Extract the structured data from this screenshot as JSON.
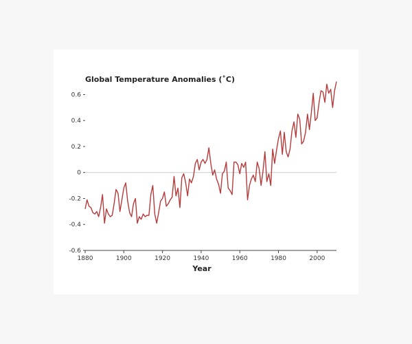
{
  "chart_data": {
    "type": "line",
    "title": "Global Temperature Anomalies (˚C)",
    "xlabel": "Year",
    "ylabel": "",
    "xlim": [
      1880,
      2010
    ],
    "ylim": [
      -0.6,
      0.65
    ],
    "xticks": [
      1880,
      1900,
      1920,
      1940,
      1960,
      1980,
      2000
    ],
    "yticks": [
      -0.6,
      -0.4,
      -0.2,
      0,
      0.2,
      0.4,
      0.6
    ],
    "ytick_labels": [
      "-0.6",
      "-0.4",
      "-0.2",
      "0",
      "0.2",
      "0.4",
      "0.6"
    ],
    "zero_line": true,
    "grid": false,
    "series": [
      {
        "color": "#b63a3a",
        "x": [
          1880,
          1881,
          1882,
          1883,
          1884,
          1885,
          1886,
          1887,
          1888,
          1889,
          1890,
          1891,
          1892,
          1893,
          1894,
          1895,
          1896,
          1897,
          1898,
          1899,
          1900,
          1901,
          1902,
          1903,
          1904,
          1905,
          1906,
          1907,
          1908,
          1909,
          1910,
          1911,
          1912,
          1913,
          1914,
          1915,
          1916,
          1917,
          1918,
          1919,
          1920,
          1921,
          1922,
          1923,
          1924,
          1925,
          1926,
          1927,
          1928,
          1929,
          1930,
          1931,
          1932,
          1933,
          1934,
          1935,
          1936,
          1937,
          1938,
          1939,
          1940,
          1941,
          1942,
          1943,
          1944,
          1945,
          1946,
          1947,
          1948,
          1949,
          1950,
          1951,
          1952,
          1953,
          1954,
          1955,
          1956,
          1957,
          1958,
          1959,
          1960,
          1961,
          1962,
          1963,
          1964,
          1965,
          1966,
          1967,
          1968,
          1969,
          1970,
          1971,
          1972,
          1973,
          1974,
          1975,
          1976,
          1977,
          1978,
          1979,
          1980,
          1981,
          1982,
          1983,
          1984,
          1985,
          1986,
          1987,
          1988,
          1989,
          1990,
          1991,
          1992,
          1993,
          1994,
          1995,
          1996,
          1997,
          1998,
          1999,
          2000,
          2001,
          2002,
          2003,
          2004,
          2005,
          2006,
          2007,
          2008,
          2009,
          2010
        ],
        "y": [
          -0.28,
          -0.21,
          -0.26,
          -0.27,
          -0.31,
          -0.32,
          -0.3,
          -0.34,
          -0.27,
          -0.17,
          -0.39,
          -0.28,
          -0.32,
          -0.34,
          -0.33,
          -0.24,
          -0.13,
          -0.16,
          -0.3,
          -0.21,
          -0.12,
          -0.08,
          -0.22,
          -0.31,
          -0.34,
          -0.24,
          -0.2,
          -0.39,
          -0.34,
          -0.36,
          -0.32,
          -0.34,
          -0.33,
          -0.33,
          -0.17,
          -0.1,
          -0.32,
          -0.39,
          -0.31,
          -0.22,
          -0.2,
          -0.15,
          -0.26,
          -0.24,
          -0.21,
          -0.19,
          -0.03,
          -0.18,
          -0.12,
          -0.27,
          -0.04,
          -0.01,
          -0.08,
          -0.18,
          -0.05,
          -0.08,
          -0.03,
          0.07,
          0.1,
          0.02,
          0.08,
          0.1,
          0.07,
          0.1,
          0.19,
          0.07,
          -0.02,
          0.02,
          -0.05,
          -0.09,
          -0.16,
          -0.01,
          0.01,
          0.08,
          -0.12,
          -0.14,
          -0.17,
          0.08,
          0.08,
          0.06,
          -0.01,
          0.07,
          0.04,
          0.08,
          -0.21,
          -0.1,
          -0.05,
          -0.02,
          -0.07,
          0.08,
          0.03,
          -0.1,
          0.01,
          0.16,
          -0.07,
          -0.01,
          -0.1,
          0.18,
          0.07,
          0.17,
          0.26,
          0.32,
          0.14,
          0.31,
          0.16,
          0.12,
          0.18,
          0.32,
          0.39,
          0.27,
          0.45,
          0.41,
          0.22,
          0.24,
          0.31,
          0.45,
          0.33,
          0.46,
          0.61,
          0.4,
          0.42,
          0.54,
          0.63,
          0.62,
          0.54,
          0.68,
          0.61,
          0.64,
          0.5,
          0.63,
          0.7
        ]
      }
    ]
  }
}
